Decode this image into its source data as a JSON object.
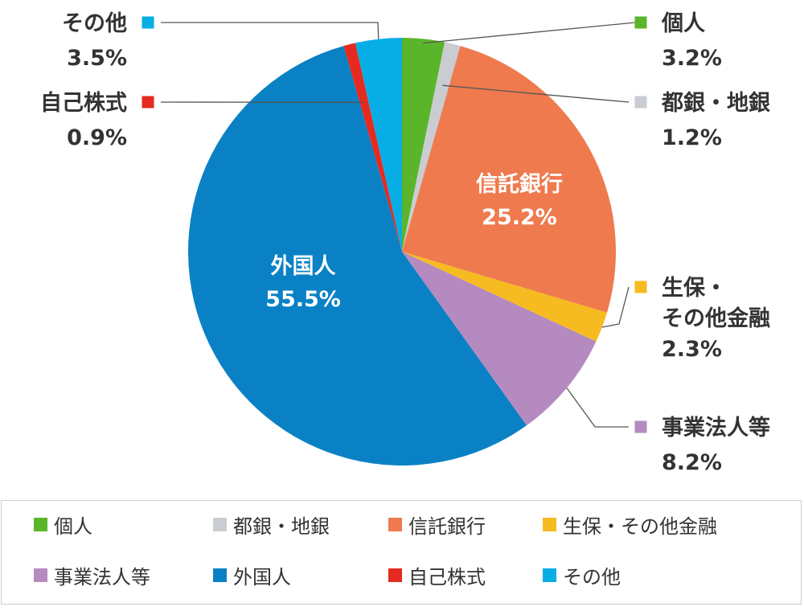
{
  "chart_data": {
    "type": "pie",
    "categories": [
      "個人",
      "都銀・地銀",
      "信託銀行",
      "生保・その他金融",
      "事業法人等",
      "外国人",
      "自己株式",
      "その他"
    ],
    "values": [
      3.2,
      1.2,
      25.2,
      2.3,
      8.2,
      55.5,
      0.9,
      3.5
    ],
    "value_labels": [
      "3.2%",
      "1.2%",
      "25.2%",
      "2.3%",
      "8.2%",
      "55.5%",
      "0.9%",
      "3.5%"
    ],
    "colors": [
      "#5ab52a",
      "#c9cdd2",
      "#ef7a4e",
      "#f6bb21",
      "#b58ac0",
      "#0a81c4",
      "#e42a21",
      "#07aee5"
    ],
    "start_angle": "12 o'clock",
    "direction": "clockwise",
    "legend_position": "bottom",
    "callouts": [
      {
        "name_lines": [
          "個人"
        ],
        "value": "3.2%"
      },
      {
        "name_lines": [
          "都銀・地銀"
        ],
        "value": "1.2%"
      },
      {
        "name_lines": [
          "生保・",
          "その他金融"
        ],
        "value": "2.3%"
      },
      {
        "name_lines": [
          "事業法人等"
        ],
        "value": "8.2%"
      },
      {
        "name_lines": [
          "自己株式"
        ],
        "value": "0.9%"
      },
      {
        "name_lines": [
          "その他"
        ],
        "value": "3.5%"
      }
    ],
    "inner_labels": [
      {
        "name": "信託銀行",
        "value": "25.2%"
      },
      {
        "name": "外国人",
        "value": "55.5%"
      }
    ]
  },
  "legend": {
    "items": [
      {
        "label": "個人",
        "color": "#5ab52a"
      },
      {
        "label": "都銀・地銀",
        "color": "#c9cdd2"
      },
      {
        "label": "信託銀行",
        "color": "#ef7a4e"
      },
      {
        "label": "生保・その他金融",
        "color": "#f6bb21"
      },
      {
        "label": "事業法人等",
        "color": "#b58ac0"
      },
      {
        "label": "外国人",
        "color": "#0a81c4"
      },
      {
        "label": "自己株式",
        "color": "#e42a21"
      },
      {
        "label": "その他",
        "color": "#07aee5"
      }
    ]
  }
}
